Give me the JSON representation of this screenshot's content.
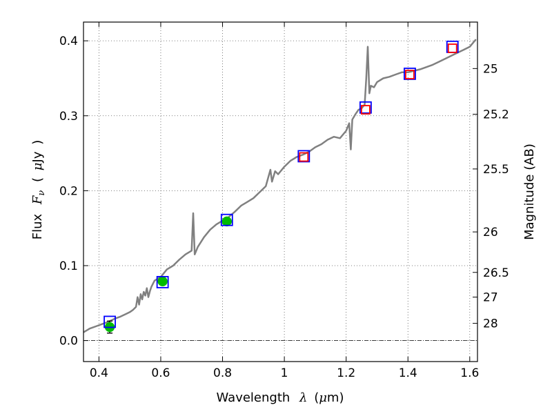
{
  "chart_data": {
    "type": "line",
    "title": "",
    "xlabel_parts": {
      "prefix": "Wavelength",
      "symbol": "λ",
      "unit_open": "(",
      "unit_mu": "μ",
      "unit_rest": "m)"
    },
    "ylabel_parts": {
      "prefix": "Flux",
      "symbol": "F",
      "subscript": "ν",
      "unit_open": "(",
      "unit_mu": "μ",
      "unit_rest": "Jy",
      "unit_close": ")"
    },
    "y2label": "Magnitude (AB)",
    "xlim": [
      0.35,
      1.625
    ],
    "ylim": [
      -0.028,
      0.425
    ],
    "grid": true,
    "xticks": [
      0.4,
      0.6,
      0.8,
      1.0,
      1.2,
      1.4,
      1.6
    ],
    "xtick_labels": [
      "0.4",
      "0.6",
      "0.8",
      "1",
      "1.2",
      "1.4",
      "1.6"
    ],
    "yticks": [
      0.0,
      0.1,
      0.2,
      0.3,
      0.4
    ],
    "ytick_labels": [
      "0.0",
      "0.1",
      "0.2",
      "0.3",
      "0.4"
    ],
    "y2ticks": [
      {
        "label": "25",
        "flux": 0.363
      },
      {
        "label": "25.2",
        "flux": 0.302
      },
      {
        "label": "25.5",
        "flux": 0.229
      },
      {
        "label": "26",
        "flux": 0.145
      },
      {
        "label": "26.5",
        "flux": 0.091
      },
      {
        "label": "27",
        "flux": 0.058
      },
      {
        "label": "28",
        "flux": 0.023
      }
    ],
    "colors": {
      "spectrum": "#808080",
      "observed": "#00bb00",
      "model_box": "#0000ff",
      "nir_box": "#ff0000",
      "grid": "#555555"
    },
    "series": [
      {
        "name": "model spectrum",
        "style": "line",
        "x": [
          0.35,
          0.37,
          0.39,
          0.41,
          0.43,
          0.45,
          0.47,
          0.49,
          0.5,
          0.51,
          0.52,
          0.525,
          0.53,
          0.535,
          0.54,
          0.545,
          0.55,
          0.555,
          0.56,
          0.565,
          0.57,
          0.58,
          0.6,
          0.62,
          0.64,
          0.66,
          0.68,
          0.7,
          0.705,
          0.71,
          0.72,
          0.74,
          0.76,
          0.78,
          0.8,
          0.82,
          0.84,
          0.86,
          0.88,
          0.9,
          0.92,
          0.94,
          0.955,
          0.96,
          0.97,
          0.98,
          1.0,
          1.02,
          1.04,
          1.06,
          1.08,
          1.1,
          1.12,
          1.14,
          1.16,
          1.18,
          1.2,
          1.21,
          1.215,
          1.22,
          1.23,
          1.24,
          1.25,
          1.26,
          1.265,
          1.27,
          1.275,
          1.28,
          1.29,
          1.3,
          1.32,
          1.34,
          1.36,
          1.38,
          1.4,
          1.42,
          1.44,
          1.46,
          1.48,
          1.5,
          1.52,
          1.54,
          1.56,
          1.58,
          1.6,
          1.62
        ],
        "y": [
          0.011,
          0.016,
          0.019,
          0.022,
          0.025,
          0.029,
          0.032,
          0.036,
          0.038,
          0.041,
          0.045,
          0.058,
          0.048,
          0.062,
          0.055,
          0.065,
          0.06,
          0.07,
          0.058,
          0.066,
          0.072,
          0.08,
          0.085,
          0.095,
          0.1,
          0.108,
          0.115,
          0.12,
          0.17,
          0.115,
          0.125,
          0.138,
          0.148,
          0.155,
          0.16,
          0.165,
          0.172,
          0.18,
          0.185,
          0.19,
          0.198,
          0.206,
          0.228,
          0.212,
          0.226,
          0.222,
          0.232,
          0.24,
          0.245,
          0.248,
          0.252,
          0.258,
          0.262,
          0.268,
          0.272,
          0.27,
          0.28,
          0.29,
          0.255,
          0.295,
          0.302,
          0.308,
          0.31,
          0.315,
          0.35,
          0.392,
          0.33,
          0.34,
          0.338,
          0.345,
          0.35,
          0.352,
          0.355,
          0.358,
          0.358,
          0.36,
          0.362,
          0.365,
          0.368,
          0.372,
          0.376,
          0.38,
          0.384,
          0.388,
          0.392,
          0.402
        ]
      },
      {
        "name": "observed photometry",
        "style": "points",
        "x": [
          0.435,
          0.606,
          0.814
        ],
        "y": [
          0.018,
          0.079,
          0.159
        ],
        "yerr": [
          0.008,
          0.004,
          0.003
        ]
      },
      {
        "name": "model photometry",
        "style": "squares",
        "x": [
          0.435,
          0.606,
          0.814,
          1.063,
          1.263,
          1.406,
          1.544
        ],
        "y": [
          0.025,
          0.078,
          0.161,
          0.246,
          0.311,
          0.356,
          0.392
        ]
      },
      {
        "name": "nir photometry",
        "style": "squares",
        "x": [
          1.063,
          1.263,
          1.406,
          1.544
        ],
        "y": [
          0.245,
          0.308,
          0.355,
          0.39
        ]
      }
    ]
  }
}
